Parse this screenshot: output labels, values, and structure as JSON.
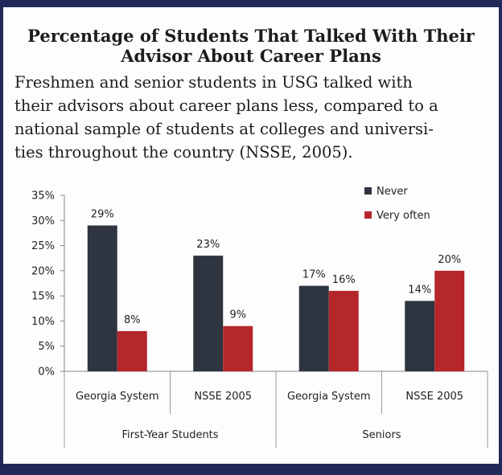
{
  "title": "Percentage of Students That Talked With Their Advisor About Career Plans",
  "description": "Freshmen and senior students in USG talked with\ntheir advisors about career plans less, compared to a\nnational sample of students at colleges and universi-\nties throughout the country (NSSE, 2005).",
  "colors": {
    "never": "#2e3440",
    "very_often": "#b5272b",
    "frame": "#22285a"
  },
  "chart_data": {
    "type": "bar",
    "title": "",
    "xlabel": "",
    "ylabel": "",
    "ylim": [
      0,
      35
    ],
    "yticks": [
      "0%",
      "5%",
      "10%",
      "15%",
      "20%",
      "25%",
      "30%",
      "35%"
    ],
    "grid": false,
    "legend_position": "top-right",
    "groups": [
      "First-Year Students",
      "Seniors"
    ],
    "categories": [
      "Georgia System",
      "NSSE 2005",
      "Georgia System",
      "NSSE 2005"
    ],
    "series": [
      {
        "name": "Never",
        "values": [
          29,
          23,
          17,
          14
        ],
        "labels": [
          "29%",
          "23%",
          "17%",
          "14%"
        ]
      },
      {
        "name": "Very often",
        "values": [
          8,
          9,
          16,
          20
        ],
        "labels": [
          "8%",
          "9%",
          "16%",
          "20%"
        ]
      }
    ]
  }
}
